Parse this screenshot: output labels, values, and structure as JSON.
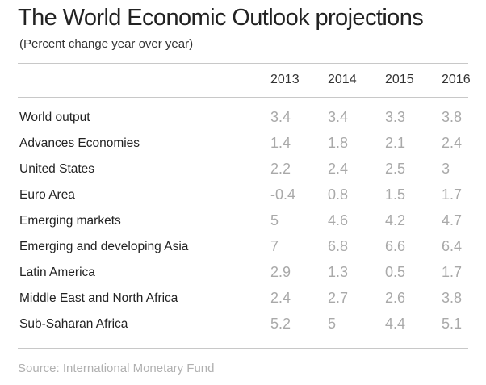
{
  "chart_data": {
    "type": "table",
    "title": "The World Economic Outlook projections",
    "subtitle": "(Percent change year over year)",
    "columns": [
      "2013",
      "2014",
      "2015",
      "2016"
    ],
    "rows": [
      {
        "label": "World output",
        "values": [
          "3.4",
          "3.4",
          "3.3",
          "3.8"
        ]
      },
      {
        "label": "Advances Economies",
        "values": [
          "1.4",
          "1.8",
          "2.1",
          "2.4"
        ]
      },
      {
        "label": "United States",
        "values": [
          "2.2",
          "2.4",
          "2.5",
          "3"
        ]
      },
      {
        "label": "Euro Area",
        "values": [
          "-0.4",
          "0.8",
          "1.5",
          "1.7"
        ]
      },
      {
        "label": "Emerging markets",
        "values": [
          "5",
          "4.6",
          "4.2",
          "4.7"
        ]
      },
      {
        "label": "Emerging and developing Asia",
        "values": [
          "7",
          "6.8",
          "6.6",
          "6.4"
        ]
      },
      {
        "label": "Latin America",
        "values": [
          "2.9",
          "1.3",
          "0.5",
          "1.7"
        ]
      },
      {
        "label": "Middle East and North Africa",
        "values": [
          "2.4",
          "2.7",
          "2.6",
          "3.8"
        ]
      },
      {
        "label": "Sub-Saharan Africa",
        "values": [
          "5.2",
          "5",
          "4.4",
          "5.1"
        ]
      }
    ],
    "source": "Source: International Monetary Fund"
  },
  "colors": {
    "title": "#222222",
    "values": "#a9a9a9",
    "source": "#b0b0b0",
    "rules": "#c8c8c8"
  }
}
